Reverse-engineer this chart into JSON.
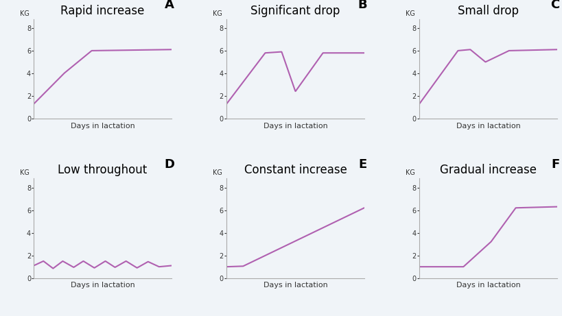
{
  "line_color": "#b060b0",
  "line_width": 1.5,
  "bg_color": "#f0f4f8",
  "ylabel": "KG",
  "xlabel": "Days in lactation",
  "yticks": [
    0,
    2,
    4,
    6,
    8
  ],
  "ylim": [
    0,
    8.8
  ],
  "title_fontsize": 12,
  "label_fontsize": 7,
  "letter_fontsize": 13,
  "subplots": [
    {
      "title": "Rapid increase",
      "letter": "A",
      "x": [
        0,
        0.22,
        0.42,
        1.0
      ],
      "y": [
        1.3,
        4.0,
        6.0,
        6.1
      ]
    },
    {
      "title": "Significant drop",
      "letter": "B",
      "x": [
        0,
        0.28,
        0.4,
        0.5,
        0.7,
        1.0
      ],
      "y": [
        1.3,
        5.8,
        5.9,
        2.4,
        5.8,
        5.8
      ]
    },
    {
      "title": "Small drop",
      "letter": "C",
      "x": [
        0,
        0.28,
        0.37,
        0.48,
        0.65,
        1.0
      ],
      "y": [
        1.3,
        6.0,
        6.1,
        5.0,
        6.0,
        6.1
      ]
    },
    {
      "title": "Low throughout",
      "letter": "D",
      "x": [
        0.0,
        0.07,
        0.14,
        0.21,
        0.29,
        0.36,
        0.44,
        0.52,
        0.59,
        0.67,
        0.75,
        0.83,
        0.91,
        1.0
      ],
      "y": [
        1.1,
        1.5,
        0.85,
        1.5,
        0.95,
        1.5,
        0.9,
        1.5,
        0.95,
        1.5,
        0.9,
        1.45,
        1.0,
        1.1
      ]
    },
    {
      "title": "Constant increase",
      "letter": "E",
      "x": [
        0,
        0.12,
        1.0
      ],
      "y": [
        1.0,
        1.05,
        6.2
      ]
    },
    {
      "title": "Gradual increase",
      "letter": "F",
      "x": [
        0,
        0.32,
        0.52,
        0.7,
        1.0
      ],
      "y": [
        1.0,
        1.0,
        3.2,
        6.2,
        6.3
      ]
    }
  ]
}
